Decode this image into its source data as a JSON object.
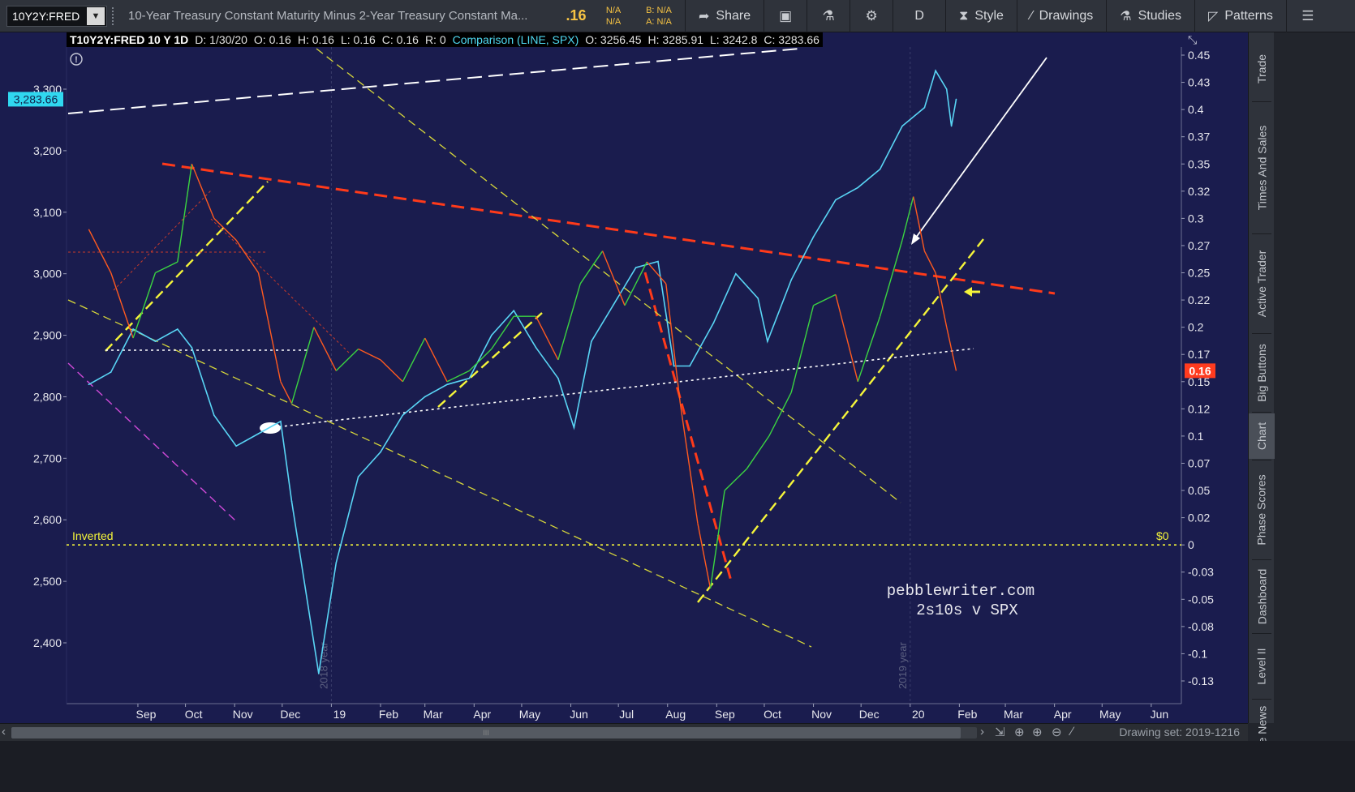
{
  "toolbar": {
    "symbol": "10Y2Y:FRED",
    "description": "10-Year Treasury Constant Maturity Minus 2-Year Treasury Constant Ma...",
    "last": ".16",
    "na1": "N/A",
    "na2": "N/A",
    "bid": "B: N/A",
    "ask": "A: N/A",
    "share": "Share",
    "period": "D",
    "style": "Style",
    "drawings": "Drawings",
    "studies": "Studies",
    "patterns": "Patterns"
  },
  "info_bar": {
    "symbol": "T10Y2Y:FRED 10 Y 1D",
    "date": "D: 1/30/20",
    "open": "O: 0.16",
    "high": "H: 0.16",
    "low": "L: 0.16",
    "close": "C: 0.16",
    "range": "R: 0",
    "comparison": "Comparison (LINE, SPX)",
    "c_open": "O: 3256.45",
    "c_high": "H: 3285.91",
    "c_low": "L: 3242.8",
    "c_close": "C: 3283.66"
  },
  "chart_data": {
    "type": "line",
    "title": "",
    "primary_series": "T10Y2Y:FRED",
    "comparison_series": "SPX",
    "x_ticks": [
      "Sep",
      "Oct",
      "Nov",
      "Dec",
      "19",
      "Feb",
      "Mar",
      "Apr",
      "May",
      "Jun",
      "Jul",
      "Aug",
      "Sep",
      "Oct",
      "Nov",
      "Dec",
      "20",
      "Feb",
      "Mar",
      "Apr",
      "May",
      "Jun"
    ],
    "right_axis_ticks": [
      "0.45",
      "0.43",
      "0.4",
      "0.37",
      "0.35",
      "0.32",
      "0.3",
      "0.27",
      "0.25",
      "0.22",
      "0.2",
      "0.17",
      "0.15",
      "0.12",
      "0.1",
      "0.07",
      "0.05",
      "0.02",
      "0",
      "-0.03",
      "-0.05",
      "-0.08",
      "-0.1",
      "-0.13"
    ],
    "right_axis_values": [
      0.45,
      0.425,
      0.4,
      0.375,
      0.35,
      0.325,
      0.3,
      0.275,
      0.25,
      0.225,
      0.2,
      0.175,
      0.15,
      0.125,
      0.1,
      0.075,
      0.05,
      0.025,
      0,
      -0.025,
      -0.05,
      -0.075,
      -0.1,
      -0.125
    ],
    "left_axis_ticks": [
      "3,300",
      "3,200",
      "3,100",
      "3,000",
      "2,900",
      "2,800",
      "2,700",
      "2,600",
      "2,500",
      "2,400"
    ],
    "left_axis_values": [
      3300,
      3200,
      3100,
      3000,
      2900,
      2800,
      2700,
      2600,
      2500,
      2400
    ],
    "spread_last": "0.16",
    "spx_last": "3,283.66",
    "year_markers": [
      "2018 year",
      "2019 year"
    ],
    "inverted_label": "Inverted",
    "zero_label": "$0",
    "watermark": [
      "pebblewriter.com",
      "2s10s v SPX"
    ],
    "spread_points": [
      [
        "2018-08-01",
        0.29
      ],
      [
        "2018-08-15",
        0.25
      ],
      [
        "2018-08-29",
        0.19
      ],
      [
        "2018-09-12",
        0.25
      ],
      [
        "2018-09-26",
        0.26
      ],
      [
        "2018-10-05",
        0.35
      ],
      [
        "2018-10-19",
        0.3
      ],
      [
        "2018-11-02",
        0.28
      ],
      [
        "2018-11-16",
        0.25
      ],
      [
        "2018-11-30",
        0.15
      ],
      [
        "2018-12-07",
        0.13
      ],
      [
        "2018-12-21",
        0.2
      ],
      [
        "2019-01-04",
        0.16
      ],
      [
        "2019-01-18",
        0.18
      ],
      [
        "2019-02-01",
        0.17
      ],
      [
        "2019-02-15",
        0.15
      ],
      [
        "2019-03-01",
        0.19
      ],
      [
        "2019-03-15",
        0.15
      ],
      [
        "2019-03-29",
        0.16
      ],
      [
        "2019-04-12",
        0.18
      ],
      [
        "2019-04-26",
        0.21
      ],
      [
        "2019-05-10",
        0.21
      ],
      [
        "2019-05-24",
        0.17
      ],
      [
        "2019-06-07",
        0.24
      ],
      [
        "2019-06-21",
        0.27
      ],
      [
        "2019-07-05",
        0.22
      ],
      [
        "2019-07-19",
        0.26
      ],
      [
        "2019-07-31",
        0.24
      ],
      [
        "2019-08-09",
        0.13
      ],
      [
        "2019-08-20",
        0.02
      ],
      [
        "2019-08-28",
        -0.04
      ],
      [
        "2019-09-06",
        0.05
      ],
      [
        "2019-09-20",
        0.07
      ],
      [
        "2019-10-04",
        0.1
      ],
      [
        "2019-10-18",
        0.14
      ],
      [
        "2019-11-01",
        0.22
      ],
      [
        "2019-11-15",
        0.23
      ],
      [
        "2019-11-29",
        0.15
      ],
      [
        "2019-12-13",
        0.21
      ],
      [
        "2019-12-27",
        0.28
      ],
      [
        "2020-01-03",
        0.32
      ],
      [
        "2020-01-10",
        0.27
      ],
      [
        "2020-01-17",
        0.25
      ],
      [
        "2020-01-24",
        0.2
      ],
      [
        "2020-01-30",
        0.16
      ]
    ],
    "spx_points": [
      [
        "2018-08-01",
        2820
      ],
      [
        "2018-08-15",
        2840
      ],
      [
        "2018-08-29",
        2910
      ],
      [
        "2018-09-12",
        2890
      ],
      [
        "2018-09-26",
        2910
      ],
      [
        "2018-10-05",
        2880
      ],
      [
        "2018-10-19",
        2770
      ],
      [
        "2018-11-02",
        2720
      ],
      [
        "2018-11-16",
        2740
      ],
      [
        "2018-11-30",
        2760
      ],
      [
        "2018-12-07",
        2630
      ],
      [
        "2018-12-24",
        2350
      ],
      [
        "2019-01-04",
        2530
      ],
      [
        "2019-01-18",
        2670
      ],
      [
        "2019-02-01",
        2710
      ],
      [
        "2019-02-15",
        2770
      ],
      [
        "2019-03-01",
        2800
      ],
      [
        "2019-03-15",
        2820
      ],
      [
        "2019-03-29",
        2830
      ],
      [
        "2019-04-12",
        2900
      ],
      [
        "2019-04-26",
        2940
      ],
      [
        "2019-05-10",
        2880
      ],
      [
        "2019-05-24",
        2830
      ],
      [
        "2019-06-03",
        2750
      ],
      [
        "2019-06-14",
        2890
      ],
      [
        "2019-06-28",
        2950
      ],
      [
        "2019-07-12",
        3010
      ],
      [
        "2019-07-26",
        3020
      ],
      [
        "2019-08-05",
        2850
      ],
      [
        "2019-08-15",
        2850
      ],
      [
        "2019-08-30",
        2920
      ],
      [
        "2019-09-13",
        3000
      ],
      [
        "2019-09-27",
        2960
      ],
      [
        "2019-10-03",
        2890
      ],
      [
        "2019-10-18",
        2990
      ],
      [
        "2019-11-01",
        3060
      ],
      [
        "2019-11-15",
        3120
      ],
      [
        "2019-11-29",
        3140
      ],
      [
        "2019-12-13",
        3170
      ],
      [
        "2019-12-27",
        3240
      ],
      [
        "2020-01-10",
        3270
      ],
      [
        "2020-01-17",
        3330
      ],
      [
        "2020-01-24",
        3300
      ],
      [
        "2020-01-27",
        3240
      ],
      [
        "2020-01-30",
        3283.66
      ]
    ]
  },
  "side_tabs": [
    "Trade",
    "Times And Sales",
    "Active Trader",
    "Big Buttons",
    "Chart",
    "Phase Scores",
    "Dashboard",
    "Level II",
    "Live News"
  ],
  "active_tab": "Chart",
  "bottom_bar": {
    "drawing_set": "Drawing set: 2019-1216",
    "thumb_grip": "III"
  },
  "colors": {
    "chart_bg": "#1a1c4e",
    "spread_up": "#3bd441",
    "spread_down": "#ff5a1f",
    "spx_line": "#59d5f5",
    "trend_red": "#ff3a1a",
    "trend_yellow": "#f5f53a",
    "price_badge_bg": "#ff3b1f",
    "spx_badge_bg": "#30d8f0"
  }
}
